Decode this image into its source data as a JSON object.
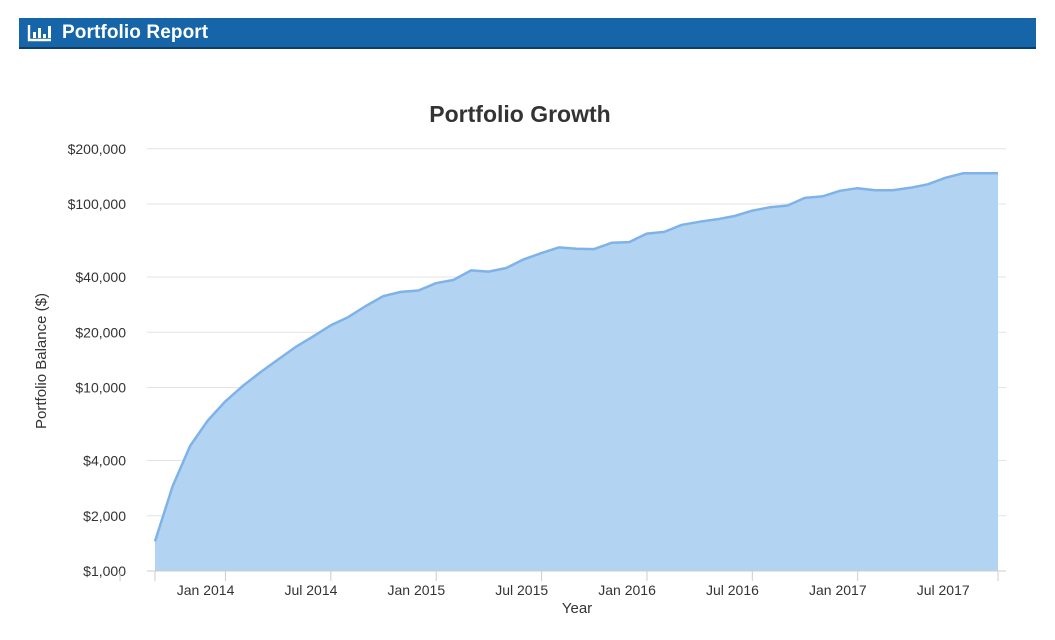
{
  "header": {
    "title": "Portfolio Report",
    "icon": "bar-chart-icon"
  },
  "colors": {
    "header_bg": "#1565a8",
    "area_fill": "#b3d3f3",
    "line": "#7fb3e8"
  },
  "chart_data": {
    "type": "area",
    "title": "Portfolio Growth",
    "xlabel": "Year",
    "ylabel": "Portfolio Balance ($)",
    "yscale": "log",
    "ylim": [
      1000,
      250000
    ],
    "yticks": [
      {
        "value": 1000,
        "label": "$1,000"
      },
      {
        "value": 2000,
        "label": "$2,000"
      },
      {
        "value": 4000,
        "label": "$4,000"
      },
      {
        "value": 10000,
        "label": "$10,000"
      },
      {
        "value": 20000,
        "label": "$20,000"
      },
      {
        "value": 40000,
        "label": "$40,000"
      },
      {
        "value": 100000,
        "label": "$100,000"
      },
      {
        "value": 200000,
        "label": "$200,000"
      }
    ],
    "xlim": [
      "2013-12",
      "2017-12"
    ],
    "xticks": [
      {
        "value": "2014-01",
        "label": "Jan 2014"
      },
      {
        "value": "2014-07",
        "label": "Jul 2014"
      },
      {
        "value": "2015-01",
        "label": "Jan 2015"
      },
      {
        "value": "2015-07",
        "label": "Jul 2015"
      },
      {
        "value": "2016-01",
        "label": "Jan 2016"
      },
      {
        "value": "2016-07",
        "label": "Jul 2016"
      },
      {
        "value": "2017-01",
        "label": "Jan 2017"
      },
      {
        "value": "2017-07",
        "label": "Jul 2017"
      }
    ],
    "grid": true,
    "x": [
      "2013-12",
      "2014-01",
      "2014-02",
      "2014-03",
      "2014-04",
      "2014-05",
      "2014-06",
      "2014-07",
      "2014-08",
      "2014-09",
      "2014-10",
      "2014-11",
      "2014-12",
      "2015-01",
      "2015-02",
      "2015-03",
      "2015-04",
      "2015-05",
      "2015-06",
      "2015-07",
      "2015-08",
      "2015-09",
      "2015-10",
      "2015-11",
      "2015-12",
      "2016-01",
      "2016-02",
      "2016-03",
      "2016-04",
      "2016-05",
      "2016-06",
      "2016-07",
      "2016-08",
      "2016-09",
      "2016-10",
      "2016-11",
      "2016-12",
      "2017-01",
      "2017-02",
      "2017-03",
      "2017-04",
      "2017-05",
      "2017-06",
      "2017-07",
      "2017-08",
      "2017-09",
      "2017-10",
      "2017-11",
      "2017-12"
    ],
    "values": [
      1450,
      2900,
      4800,
      6600,
      8400,
      10200,
      12100,
      14200,
      16600,
      19000,
      21800,
      24200,
      27800,
      31500,
      33200,
      33800,
      37000,
      38600,
      43500,
      42800,
      44800,
      50000,
      54000,
      58000,
      57000,
      56800,
      61500,
      62000,
      69000,
      70500,
      77000,
      80000,
      82500,
      86000,
      92000,
      96000,
      98000,
      108000,
      110000,
      118000,
      122000,
      119000,
      119000,
      122500,
      128000,
      139000,
      147000,
      147000,
      147000
    ]
  }
}
